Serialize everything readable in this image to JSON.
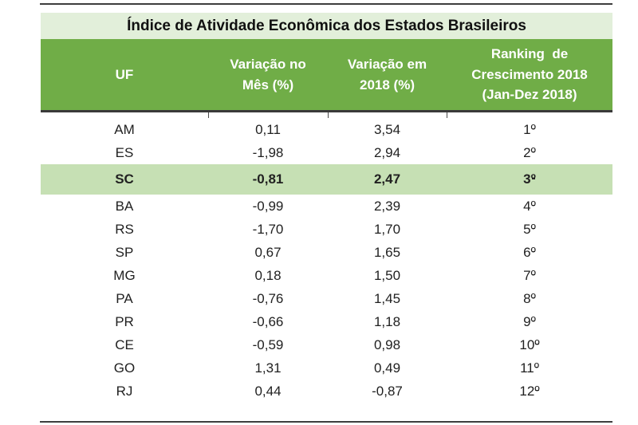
{
  "table": {
    "title": "Índice de Atividade Econômica dos Estados Brasileiros",
    "header": {
      "cols": [
        {
          "id": "uf",
          "lines": [
            "UF"
          ]
        },
        {
          "id": "monthly",
          "lines": [
            "Variação no",
            "Mês (%)"
          ]
        },
        {
          "id": "ytd",
          "lines": [
            "Variação em",
            "2018 (%)"
          ]
        },
        {
          "id": "ranking",
          "lines": [
            "Ranking  de",
            "Crescimento 2018",
            "(Jan-Dez 2018)"
          ]
        }
      ]
    },
    "rows": [
      {
        "uf": "AM",
        "monthly": "0,11",
        "ytd": "3,54",
        "rank": "1",
        "ordinal": "º",
        "highlighted": false
      },
      {
        "uf": "ES",
        "monthly": "-1,98",
        "ytd": "2,94",
        "rank": "2",
        "ordinal": "º",
        "highlighted": false
      },
      {
        "uf": "SC",
        "monthly": "-0,81",
        "ytd": "2,47",
        "rank": "3",
        "ordinal": "º",
        "highlighted": true
      },
      {
        "uf": "BA",
        "monthly": "-0,99",
        "ytd": "2,39",
        "rank": "4",
        "ordinal": "º",
        "highlighted": false
      },
      {
        "uf": "RS",
        "monthly": "-1,70",
        "ytd": "1,70",
        "rank": "5",
        "ordinal": "º",
        "highlighted": false
      },
      {
        "uf": "SP",
        "monthly": "0,67",
        "ytd": "1,65",
        "rank": "6",
        "ordinal": "º",
        "highlighted": false
      },
      {
        "uf": "MG",
        "monthly": "0,18",
        "ytd": "1,50",
        "rank": "7",
        "ordinal": "º",
        "highlighted": false
      },
      {
        "uf": "PA",
        "monthly": "-0,76",
        "ytd": "1,45",
        "rank": "8",
        "ordinal": "º",
        "highlighted": false
      },
      {
        "uf": "PR",
        "monthly": "-0,66",
        "ytd": "1,18",
        "rank": "9",
        "ordinal": "º",
        "highlighted": false
      },
      {
        "uf": "CE",
        "monthly": "-0,59",
        "ytd": "0,98",
        "rank": "10",
        "ordinal": "º",
        "highlighted": false
      },
      {
        "uf": "GO",
        "monthly": "1,31",
        "ytd": "0,49",
        "rank": "11",
        "ordinal": "º",
        "highlighted": false
      },
      {
        "uf": "RJ",
        "monthly": "0,44",
        "ytd": "-0,87",
        "rank": "12",
        "ordinal": "º",
        "highlighted": false
      }
    ],
    "colors": {
      "title_bg": "#e2efda",
      "header_bg": "#70ad47",
      "header_text": "#ffffff",
      "highlight_bg": "#c6e0b4",
      "body_text": "#212121",
      "border_dark": "#3a3a3a"
    }
  },
  "chart_data": {
    "type": "table",
    "title": "Índice de Atividade Econômica dos Estados Brasileiros",
    "columns": [
      "UF",
      "Variação no Mês (%)",
      "Variação em 2018 (%)",
      "Ranking de Crescimento 2018 (Jan-Dez 2018)"
    ],
    "rows": [
      [
        "AM",
        0.11,
        3.54,
        "1º"
      ],
      [
        "ES",
        -1.98,
        2.94,
        "2º"
      ],
      [
        "SC",
        -0.81,
        2.47,
        "3º"
      ],
      [
        "BA",
        -0.99,
        2.39,
        "4º"
      ],
      [
        "RS",
        -1.7,
        1.7,
        "5º"
      ],
      [
        "SP",
        0.67,
        1.65,
        "6º"
      ],
      [
        "MG",
        0.18,
        1.5,
        "7º"
      ],
      [
        "PA",
        -0.76,
        1.45,
        "8º"
      ],
      [
        "PR",
        -0.66,
        1.18,
        "9º"
      ],
      [
        "CE",
        -0.59,
        0.98,
        "10º"
      ],
      [
        "GO",
        1.31,
        0.49,
        "11º"
      ],
      [
        "RJ",
        0.44,
        -0.87,
        "12º"
      ]
    ],
    "highlighted_row": "SC",
    "decimal_separator": ","
  }
}
